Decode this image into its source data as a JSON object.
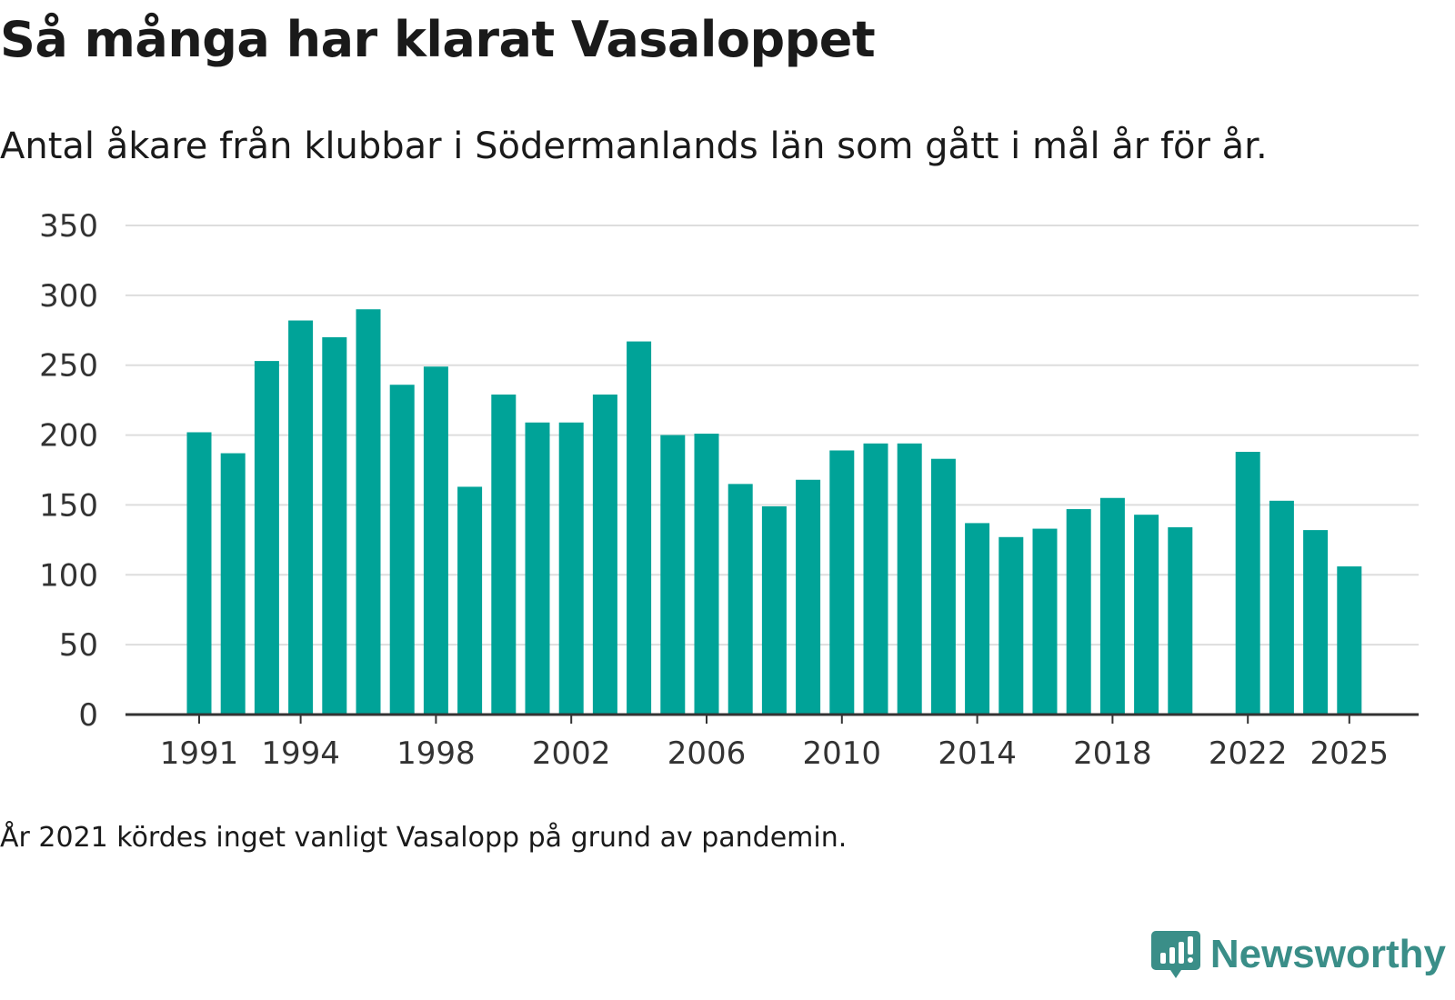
{
  "title": "Så många har klarat Vasaloppet",
  "subtitle": "Antal åkare från klubbar i Södermanlands län som gått i mål år för år.",
  "note": "År 2021 kördes inget vanligt Vasalopp på grund av pandemin.",
  "brand": {
    "name": "Newsworthy",
    "icon": "newsworthy-logo-icon"
  },
  "colors": {
    "bar": "#00a398",
    "grid": "#dddddd",
    "axis": "#333333",
    "brand": "#3a8e88"
  },
  "chart_data": {
    "type": "bar",
    "categories": [
      "1991",
      "1992",
      "1993",
      "1994",
      "1995",
      "1996",
      "1997",
      "1998",
      "1999",
      "2000",
      "2001",
      "2002",
      "2003",
      "2004",
      "2005",
      "2006",
      "2007",
      "2008",
      "2009",
      "2010",
      "2011",
      "2012",
      "2013",
      "2014",
      "2015",
      "2016",
      "2017",
      "2018",
      "2019",
      "2020",
      "2021",
      "2022",
      "2023",
      "2024",
      "2025"
    ],
    "values": [
      202,
      187,
      253,
      282,
      270,
      290,
      236,
      249,
      163,
      229,
      209,
      209,
      229,
      267,
      200,
      201,
      165,
      149,
      168,
      189,
      194,
      194,
      183,
      137,
      127,
      133,
      147,
      155,
      143,
      134,
      null,
      188,
      153,
      132,
      106
    ],
    "x_tick_labels": [
      "1991",
      "1994",
      "1998",
      "2002",
      "2006",
      "2010",
      "2014",
      "2018",
      "2022",
      "2025"
    ],
    "y_ticks": [
      0,
      50,
      100,
      150,
      200,
      250,
      300,
      350
    ],
    "ylim": [
      0,
      350
    ],
    "title": "Så många har klarat Vasaloppet",
    "xlabel": "",
    "ylabel": "",
    "grid": true,
    "legend": "none"
  }
}
